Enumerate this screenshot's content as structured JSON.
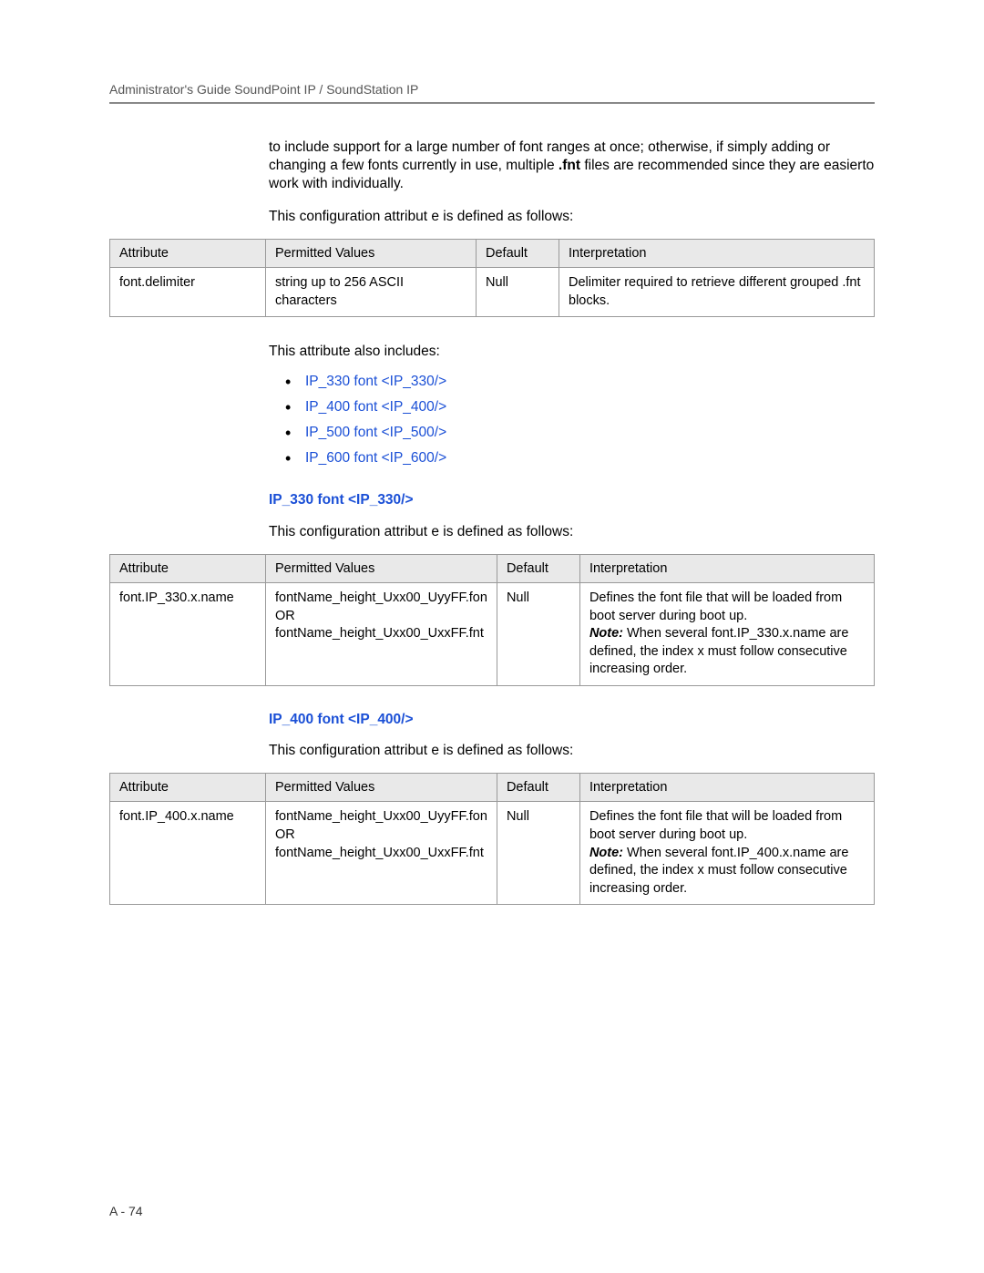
{
  "header": {
    "title": "Administrator's Guide SoundPoint IP / SoundStation IP"
  },
  "intro": {
    "para1_a": "to include support for a large number of  font ranges at once; otherwise, if simply adding or changing a few  fonts currently in use, multiple ",
    "fnt": ".fnt",
    "para1_b": " files are recommended since they are easierto work with individually.",
    "para2": "This configuration attribut e is defined as follows:"
  },
  "table1": {
    "headers": {
      "c1": "Attribute",
      "c2": "Permitted Values",
      "c3": "Default",
      "c4": "Interpretation"
    },
    "row": {
      "attr": "font.delimiter",
      "perm": "string up to 256 ASCII characters",
      "def": "Null",
      "interp": "Delimiter required to retrieve different grouped .fnt blocks."
    }
  },
  "includes": {
    "lead": "This attribute also includes:",
    "items": [
      "IP_330 font <IP_330/>",
      "IP_400 font <IP_400/>",
      "IP_500 font <IP_500/>",
      "IP_600 font <IP_600/>"
    ]
  },
  "sec330": {
    "heading": "IP_330 font <IP_330/>",
    "lead": "This configuration attribut e is defined as follows:",
    "headers": {
      "c1": "Attribute",
      "c2": "Permitted Values",
      "c3": "Default",
      "c4": "Interpretation"
    },
    "row": {
      "attr": "font.IP_330.x.name",
      "perm": "fontName_height_Uxx00_UyyFF.fon  OR fontName_height_Uxx00_UxxFF.fnt",
      "def": "Null",
      "interp_a": "Defines the font file that will be loaded from boot server during boot up.",
      "note_label": "Note:",
      "interp_b": " When several font.IP_330.x.name are defined, the index x must follow consecutive increasing order."
    }
  },
  "sec400": {
    "heading": "IP_400 font <IP_400/>",
    "lead": "This configuration attribut e is defined as follows:",
    "headers": {
      "c1": "Attribute",
      "c2": "Permitted Values",
      "c3": "Default",
      "c4": "Interpretation"
    },
    "row": {
      "attr": "font.IP_400.x.name",
      "perm": "fontName_height_Uxx00_UyyFF.fon  OR fontName_height_Uxx00_UxxFF.fnt",
      "def": "Null",
      "interp_a": "Defines the font file that will be loaded from boot server during boot up.",
      "note_label": "Note:",
      "interp_b": " When several font.IP_400.x.name are defined, the index x must follow consecutive increasing order."
    }
  },
  "footer": {
    "text": "A - 74"
  },
  "colors": {
    "link": "#1a4fd6",
    "header_gray": "#e9e9e9",
    "border": "#999999",
    "rule": "#888888"
  }
}
